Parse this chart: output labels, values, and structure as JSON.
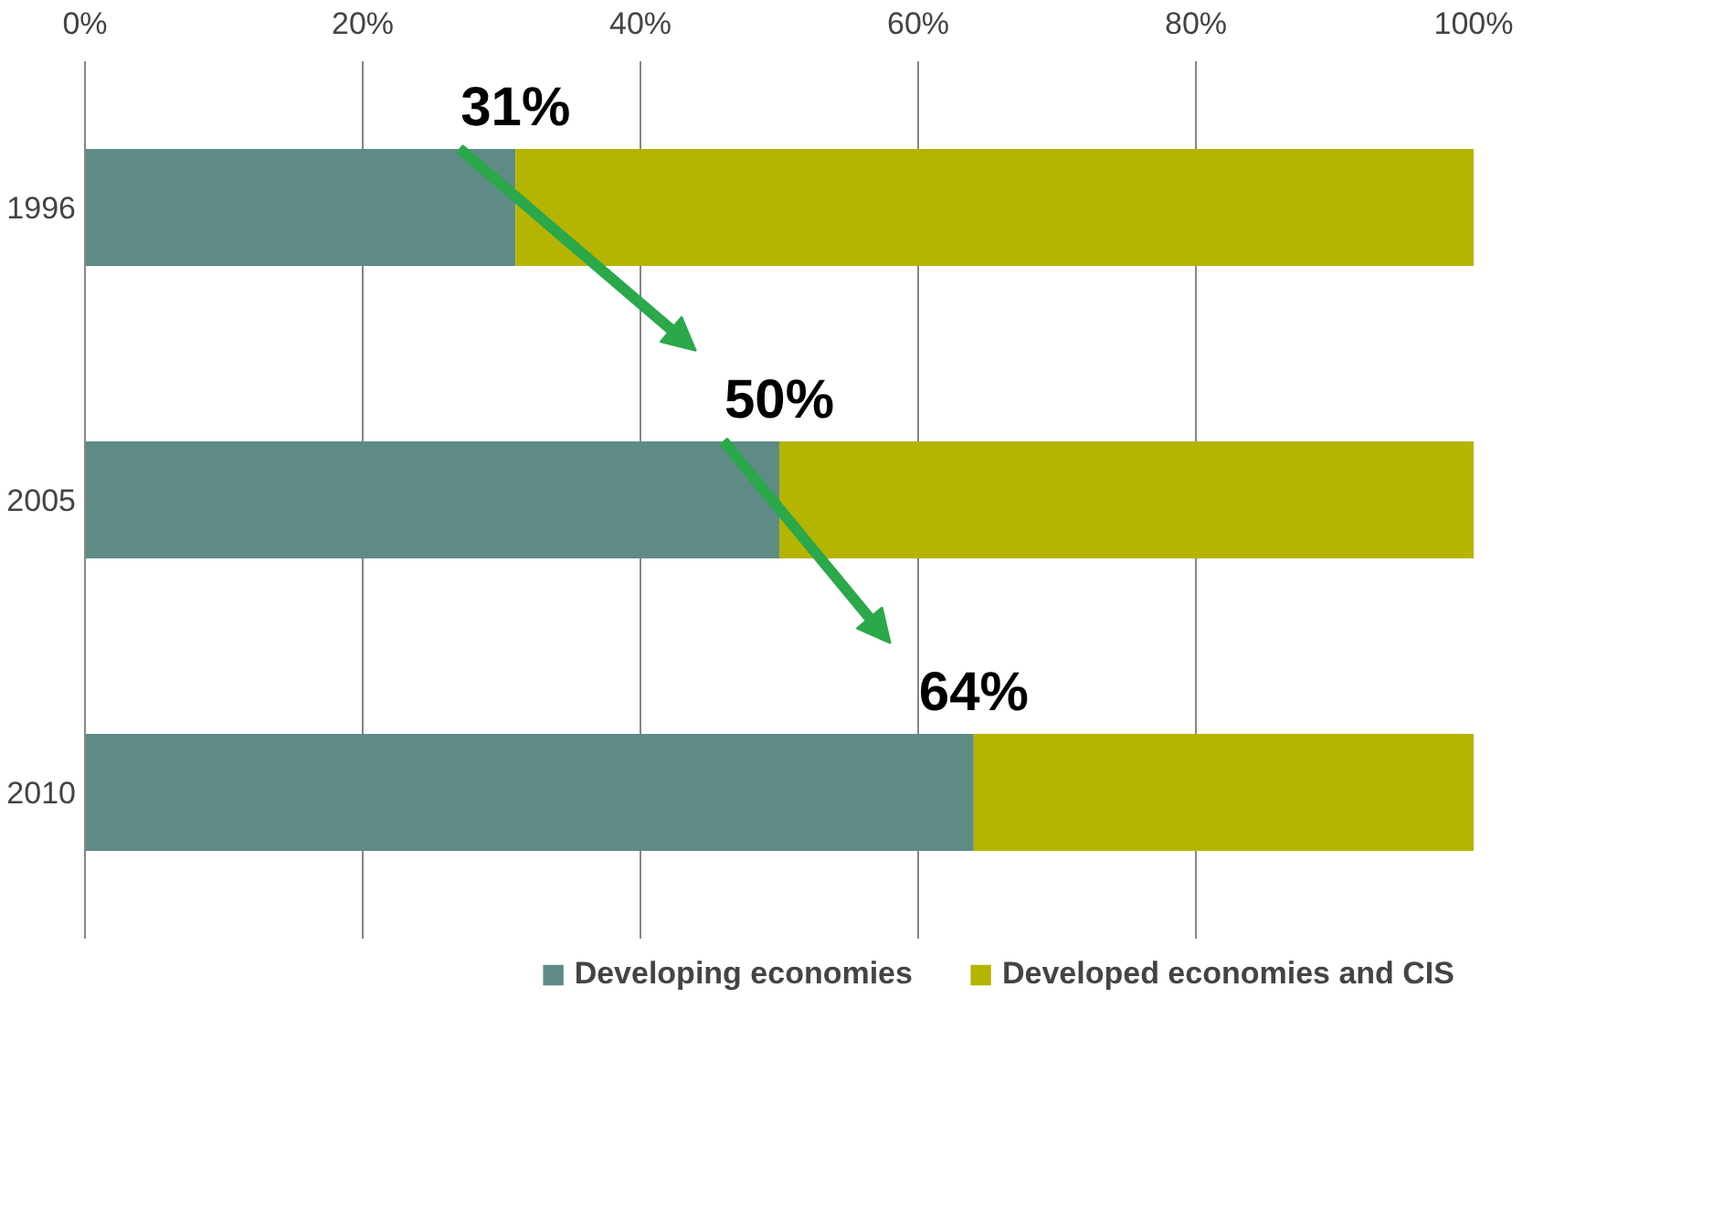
{
  "chart_data": {
    "type": "bar",
    "orientation": "horizontal",
    "stacked": true,
    "categories": [
      "1996",
      "2005",
      "2010"
    ],
    "series": [
      {
        "name": "Developing economies",
        "color": "#5f8b87",
        "values": [
          31,
          50,
          64
        ]
      },
      {
        "name": "Developed economies and CIS",
        "color": "#b5b400",
        "values": [
          69,
          50,
          36
        ]
      }
    ],
    "xlim": [
      0,
      100
    ],
    "xticks": [
      {
        "value": 0,
        "label": "0%"
      },
      {
        "value": 20,
        "label": "20%"
      },
      {
        "value": 40,
        "label": "40%"
      },
      {
        "value": 60,
        "label": "60%"
      },
      {
        "value": 80,
        "label": "80%"
      },
      {
        "value": 100,
        "label": "100%"
      }
    ],
    "annotations": [
      {
        "text": "31%",
        "x": 31,
        "y": "1996"
      },
      {
        "text": "50%",
        "x": 50,
        "y": "2005"
      },
      {
        "text": "64%",
        "x": 64,
        "y": "2010"
      }
    ],
    "grid": "x",
    "legend": "bottom"
  }
}
